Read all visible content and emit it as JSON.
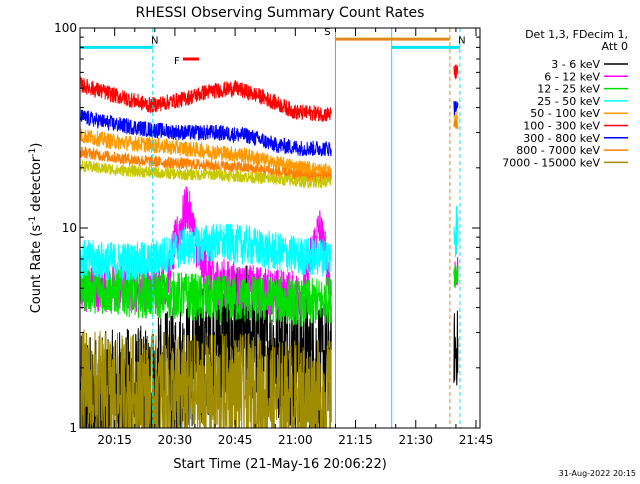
{
  "chart_data": {
    "type": "line",
    "title": "RHESSI Observing Summary Count Rates",
    "xlabel": "Start Time (21-May-16 20:06:22)",
    "ylabel": "Count Rate (s⁻¹ detector⁻¹)",
    "ylabel_parts": [
      "Count Rate (s",
      "-1",
      " detector",
      "-1",
      ")"
    ],
    "x_scale": "time",
    "y_scale": "log",
    "xlim": [
      "20:06:22",
      "21:46:00"
    ],
    "ylim": [
      1,
      100
    ],
    "x_ticks": [
      "20:15",
      "20:30",
      "20:45",
      "21:00",
      "21:15",
      "21:30",
      "21:45"
    ],
    "y_ticks": [
      "1",
      "10",
      "100"
    ],
    "grid": false,
    "legend_position": "right",
    "legend_header": [
      "Det 1,3, FDecim 1,",
      "Att 0"
    ],
    "timestamp": "31-Aug-2022 20:15",
    "colors": {
      "attenuator_line": "#00e5ee",
      "saa_line": "#e08a1e",
      "flare_flag": "#ff0000",
      "night_flag": "#00e5ee"
    },
    "flags": [
      {
        "label": "N",
        "kind": "night",
        "start": "20:06:22",
        "end": "20:24:30",
        "y": 80
      },
      {
        "label": "F",
        "kind": "flare",
        "start": "20:32:00",
        "end": "20:36:00",
        "y": 70
      },
      {
        "label": "S",
        "kind": "saa",
        "start": "21:10:00",
        "end": "21:38:30",
        "y": 88
      },
      {
        "label": "N",
        "kind": "night",
        "start": "21:24:00",
        "end": "21:41:00",
        "y": 80
      }
    ],
    "vertical_markers": [
      {
        "time": "20:06:22",
        "kind": "night",
        "style": "solid"
      },
      {
        "time": "20:24:30",
        "kind": "night",
        "style": "dashed"
      },
      {
        "time": "21:10:00",
        "kind": "saa",
        "style": "solid"
      },
      {
        "time": "21:24:00",
        "kind": "night",
        "style": "solid"
      },
      {
        "time": "21:38:30",
        "kind": "saa",
        "style": "dashed"
      },
      {
        "time": "21:41:00",
        "kind": "night",
        "style": "dashed"
      }
    ],
    "series": [
      {
        "name": "3 - 6 keV",
        "color": "#000000",
        "segments": [
          {
            "t": [
              "20:06:30",
              "20:15:00",
              "20:24:00",
              "20:32:00",
              "20:40:00",
              "20:48:00",
              "20:55:00",
              "21:02:00",
              "21:09:00"
            ],
            "y": [
              1.3,
              1.4,
              1.5,
              2.0,
              2.6,
              3.0,
              2.4,
              2.2,
              2.0
            ],
            "noise": 0.35
          },
          {
            "t": [
              "21:39:30",
              "21:40:30"
            ],
            "y": [
              2.5,
              2.5
            ],
            "noise": 0.2
          }
        ]
      },
      {
        "name": "6 - 12 keV",
        "color": "#ff00ff",
        "segments": [
          {
            "t": [
              "20:06:30",
              "20:15:00",
              "20:24:00",
              "20:28:00",
              "20:31:00",
              "20:33:00",
              "20:36:00",
              "20:40:00",
              "20:48:00",
              "20:55:00",
              "21:02:00",
              "21:06:00",
              "21:09:00"
            ],
            "y": [
              5.0,
              5.0,
              5.0,
              5.5,
              9.5,
              13.0,
              7.0,
              5.5,
              5.0,
              4.8,
              4.6,
              10.0,
              4.6
            ],
            "noise": 0.12
          },
          {
            "t": [
              "21:39:30",
              "21:40:30"
            ],
            "y": [
              6.0,
              6.0
            ],
            "noise": 0.08
          }
        ]
      },
      {
        "name": "12 - 25 keV",
        "color": "#00e000",
        "segments": [
          {
            "t": [
              "20:06:30",
              "20:15:00",
              "20:24:00",
              "20:32:00",
              "20:40:00",
              "20:48:00",
              "20:55:00",
              "21:02:00",
              "21:09:00"
            ],
            "y": [
              5.0,
              4.8,
              4.6,
              4.6,
              4.4,
              4.4,
              4.4,
              4.2,
              4.4
            ],
            "noise": 0.12
          },
          {
            "t": [
              "21:39:30",
              "21:40:30"
            ],
            "y": [
              6.0,
              6.0
            ],
            "noise": 0.08
          }
        ]
      },
      {
        "name": "25 - 50 keV",
        "color": "#00ffff",
        "segments": [
          {
            "t": [
              "20:06:30",
              "20:15:00",
              "20:24:00",
              "20:32:00",
              "20:40:00",
              "20:48:00",
              "20:55:00",
              "21:02:00",
              "21:09:00"
            ],
            "y": [
              7.0,
              6.8,
              6.8,
              8.0,
              8.5,
              8.2,
              7.6,
              7.2,
              7.2
            ],
            "noise": 0.1
          },
          {
            "t": [
              "21:39:30",
              "21:40:30"
            ],
            "y": [
              10.0,
              10.0
            ],
            "noise": 0.15
          }
        ]
      },
      {
        "name": "50 - 100 keV",
        "color": "#ff9900",
        "segments": [
          {
            "t": [
              "20:06:30",
              "20:15:00",
              "20:24:00",
              "20:32:00",
              "20:40:00",
              "20:48:00",
              "20:55:00",
              "21:02:00",
              "21:09:00"
            ],
            "y": [
              29.0,
              27.0,
              26.0,
              25.0,
              24.0,
              23.0,
              21.0,
              20.0,
              19.0
            ],
            "noise": 0.04
          },
          {
            "t": [
              "21:39:30",
              "21:40:30"
            ],
            "y": [
              35.0,
              35.0
            ],
            "noise": 0.04
          }
        ]
      },
      {
        "name": "100 - 300 keV",
        "color": "#ff0000",
        "segments": [
          {
            "t": [
              "20:06:30",
              "20:15:00",
              "20:24:00",
              "20:32:00",
              "20:38:00",
              "20:45:00",
              "20:52:00",
              "21:00:00",
              "21:09:00"
            ],
            "y": [
              52.0,
              46.0,
              41.0,
              44.0,
              48.0,
              50.0,
              45.0,
              38.0,
              37.0
            ],
            "noise": 0.04
          },
          {
            "t": [
              "21:39:30",
              "21:40:30"
            ],
            "y": [
              60.0,
              60.0
            ],
            "noise": 0.04
          }
        ]
      },
      {
        "name": "300 - 800 keV",
        "color": "#0000ff",
        "segments": [
          {
            "t": [
              "20:06:30",
              "20:15:00",
              "20:24:00",
              "20:32:00",
              "20:40:00",
              "20:48:00",
              "20:55:00",
              "21:02:00",
              "21:09:00"
            ],
            "y": [
              36.0,
              33.0,
              31.0,
              30.0,
              30.0,
              29.0,
              26.0,
              25.0,
              25.0
            ],
            "noise": 0.04
          },
          {
            "t": [
              "21:39:30",
              "21:40:30"
            ],
            "y": [
              40.0,
              40.0
            ],
            "noise": 0.04
          }
        ]
      },
      {
        "name": "800 - 7000 keV",
        "color": "#ff7f00",
        "segments": [
          {
            "t": [
              "20:06:30",
              "20:15:00",
              "20:24:00",
              "20:32:00",
              "20:40:00",
              "20:48:00",
              "20:55:00",
              "21:02:00",
              "21:09:00"
            ],
            "y": [
              24.0,
              22.5,
              21.5,
              21.0,
              20.5,
              20.0,
              19.0,
              18.0,
              18.0
            ],
            "noise": 0.03
          },
          {
            "t": [
              "21:39:30",
              "21:40:30"
            ],
            "y": [
              33.0,
              33.0
            ],
            "noise": 0.03
          }
        ]
      },
      {
        "name": "7000 - 15000 keV",
        "color": "#a08c00",
        "segments": [
          {
            "t": [
              "20:06:30",
              "20:15:00",
              "20:24:00",
              "20:32:00",
              "20:40:00",
              "20:48:00",
              "20:55:00",
              "21:02:00",
              "21:09:00"
            ],
            "y": [
              1.6,
              1.5,
              1.5,
              1.5,
              1.5,
              1.5,
              1.4,
              1.4,
              1.4
            ],
            "noise": 0.3
          }
        ]
      },
      {
        "name": "7000 - 15000 keV upper",
        "legend": false,
        "color": "#c8c800",
        "segments": [
          {
            "t": [
              "20:06:30",
              "20:15:00",
              "20:24:00",
              "20:32:00",
              "20:40:00",
              "20:48:00",
              "20:55:00",
              "21:02:00",
              "21:09:00"
            ],
            "y": [
              20.5,
              19.5,
              19.0,
              18.5,
              18.5,
              18.0,
              17.5,
              17.0,
              17.0
            ],
            "noise": 0.03
          }
        ]
      }
    ]
  }
}
